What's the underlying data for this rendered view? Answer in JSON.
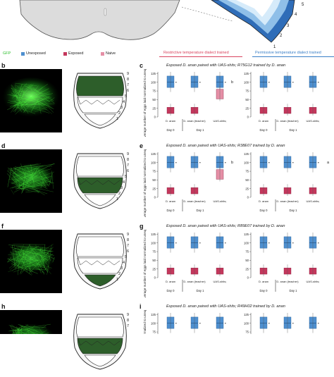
{
  "legend": {
    "gfp": "GFP",
    "unexposed": "Unexposed",
    "exposed": "Exposed",
    "naive": "Naive",
    "colors": {
      "unexposed": "#4e8fcf",
      "exposed": "#c4375c",
      "naive": "#e58fa6",
      "gfp": "#2ec02e"
    }
  },
  "headers": {
    "restrictive": "Restrictive temperature dialect trained",
    "permissive": "Permissive temperature dialect trained"
  },
  "top_diagram": {
    "numbers": [
      "5",
      "4",
      "3",
      "2",
      "1"
    ]
  },
  "rows": [
    {
      "letter_img": "b",
      "letter_chart": "c",
      "title": "Exposed D. anan paired with UAS-shi^ts; R75G12 trained by D. anan",
      "diagram_numbers": [
        "9",
        "8",
        "7",
        "6",
        "5",
        "4",
        "3",
        "2",
        "1"
      ],
      "annotations": [
        "b"
      ]
    },
    {
      "letter_img": "d",
      "letter_chart": "e",
      "title": "Exposed D. anan paired with UAS-shi^ts; R38E07 trained by D. anan",
      "diagram_numbers": [
        "9",
        "8",
        "7",
        "6",
        "5",
        "4",
        "3",
        "2",
        "1"
      ],
      "annotations": [
        "b",
        "a"
      ]
    },
    {
      "letter_img": "f",
      "letter_chart": "g",
      "title": "Exposed D. anan paired with UAS-shi^ts; R89E07 trained by D. anan",
      "diagram_numbers": [
        "9",
        "8",
        "7",
        "6",
        "5",
        "4",
        "3",
        "2",
        "1"
      ],
      "annotations": []
    },
    {
      "letter_img": "h",
      "letter_chart": "i",
      "title": "Exposed D. anan paired with UAS-shi^ts; R49H02 trained by D. anan",
      "diagram_numbers": [
        "9",
        "8",
        "7"
      ],
      "annotations": []
    }
  ],
  "axis": {
    "ylabel": "Average number of eggs laid normalized to unexposed",
    "yticks": [
      "0",
      "25",
      "50",
      "75",
      "100",
      "125"
    ],
    "xgroups_left": [
      "D. anan",
      "D. anan (teacher)",
      "UAS-shi^ts; R75G12 (student)"
    ],
    "days": [
      "Day 0",
      "Day 1"
    ],
    "xgroups_right": [
      "D. anan",
      "D. anan (teacher)",
      "UAS-shi^ts; R75G12 (student)"
    ]
  },
  "row_student_labels": [
    "UAS-shi^ts; R75G12 (student)",
    "UAS-shi^ts; R38E07 (student)",
    "UAS-shi^ts; R89E07 (student)",
    "UAS-shi^ts; R49H02 (student)"
  ]
}
